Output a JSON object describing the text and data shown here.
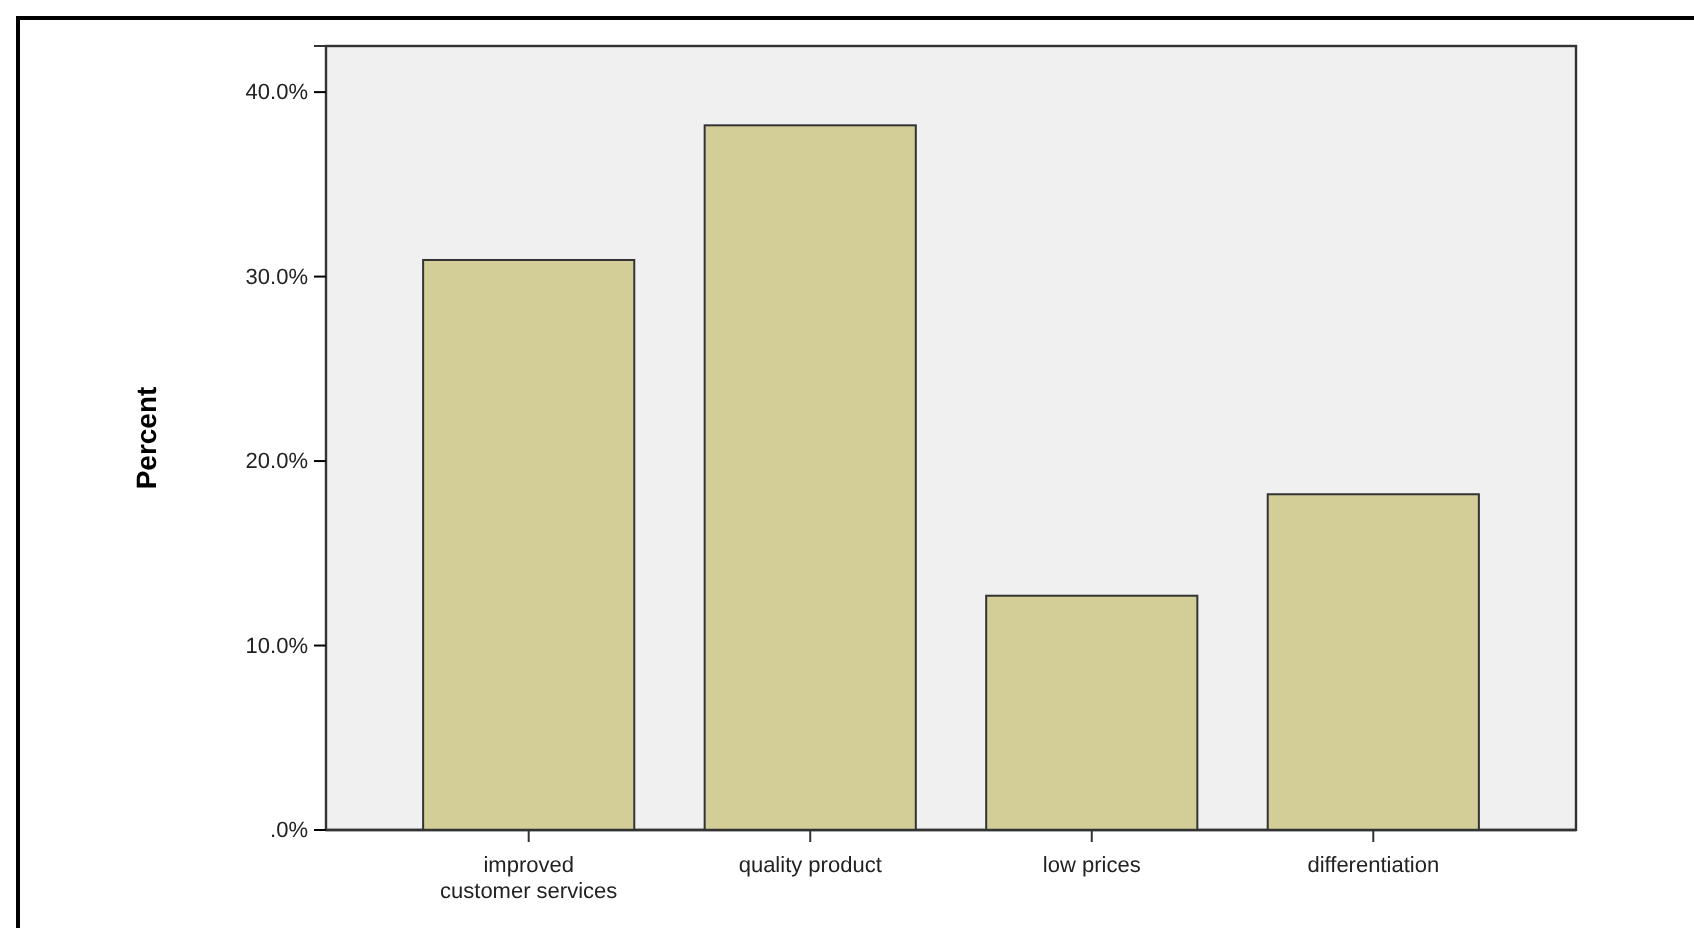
{
  "chart_data": {
    "type": "bar",
    "ylabel": "Percent",
    "categories": [
      "improved\ncustomer services",
      "quality product",
      "low prices",
      "differentiation"
    ],
    "values": [
      30.9,
      38.2,
      12.7,
      18.2
    ],
    "color": "#d3ce97",
    "ylim": [
      0,
      42.5
    ],
    "yticks": [
      {
        "value": 0,
        "label": ".0%"
      },
      {
        "value": 10,
        "label": "10.0%"
      },
      {
        "value": 20,
        "label": "20.0%"
      },
      {
        "value": 30,
        "label": "30.0%"
      },
      {
        "value": 40,
        "label": "40.0%"
      }
    ],
    "grid": false
  }
}
